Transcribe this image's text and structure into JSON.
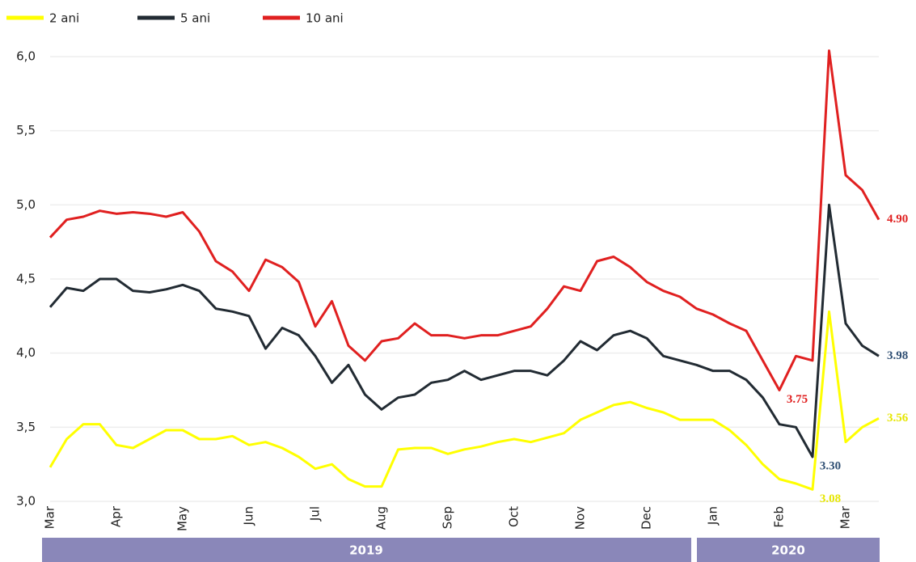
{
  "chart_data": {
    "type": "line",
    "categories": [
      "Mar",
      null,
      null,
      null,
      "Apr",
      null,
      null,
      null,
      "May",
      null,
      null,
      null,
      "Jun",
      null,
      null,
      null,
      "Jul",
      null,
      null,
      null,
      "Aug",
      null,
      null,
      null,
      "Sep",
      null,
      null,
      null,
      "Oct",
      null,
      null,
      null,
      "Nov",
      null,
      null,
      null,
      "Dec",
      null,
      null,
      null,
      "Jan",
      null,
      null,
      null,
      "Feb",
      null,
      null,
      null,
      "Mar",
      null,
      null
    ],
    "x_groups": [
      "2019",
      "2020"
    ],
    "series": [
      {
        "name": "2 ani",
        "color": "#ffff00",
        "label_color": "#e6e600",
        "values": [
          3.23,
          3.42,
          3.52,
          3.52,
          3.38,
          3.36,
          3.42,
          3.48,
          3.48,
          3.42,
          3.42,
          3.44,
          3.38,
          3.4,
          3.36,
          3.3,
          3.22,
          3.25,
          3.15,
          3.1,
          3.1,
          3.35,
          3.36,
          3.36,
          3.32,
          3.35,
          3.37,
          3.4,
          3.42,
          3.4,
          3.43,
          3.46,
          3.55,
          3.6,
          3.65,
          3.67,
          3.63,
          3.6,
          3.55,
          3.55,
          3.55,
          3.48,
          3.38,
          3.25,
          3.15,
          3.12,
          3.08,
          4.28,
          3.4,
          3.5,
          3.56
        ],
        "value_labels": [
          null,
          null,
          null,
          null,
          null,
          null,
          null,
          null,
          null,
          null,
          null,
          null,
          null,
          null,
          null,
          null,
          null,
          null,
          null,
          null,
          null,
          null,
          null,
          null,
          null,
          null,
          null,
          null,
          null,
          null,
          null,
          null,
          null,
          null,
          null,
          null,
          null,
          null,
          null,
          null,
          null,
          null,
          null,
          null,
          null,
          null,
          "3.08",
          null,
          null,
          null,
          "3.56"
        ]
      },
      {
        "name": "5 ani",
        "color": "#222b33",
        "label_color": "#2f4f73",
        "values": [
          4.31,
          4.44,
          4.42,
          4.5,
          4.5,
          4.42,
          4.41,
          4.43,
          4.46,
          4.42,
          4.3,
          4.28,
          4.25,
          4.03,
          4.17,
          4.12,
          3.98,
          3.8,
          3.92,
          3.72,
          3.62,
          3.7,
          3.72,
          3.8,
          3.82,
          3.88,
          3.82,
          3.85,
          3.88,
          3.88,
          3.85,
          3.95,
          4.08,
          4.02,
          4.12,
          4.15,
          4.1,
          3.98,
          3.95,
          3.92,
          3.88,
          3.88,
          3.82,
          3.7,
          3.52,
          3.5,
          3.3,
          5.0,
          4.2,
          4.05,
          3.98
        ],
        "value_labels": [
          null,
          null,
          null,
          null,
          null,
          null,
          null,
          null,
          null,
          null,
          null,
          null,
          null,
          null,
          null,
          null,
          null,
          null,
          null,
          null,
          null,
          null,
          null,
          null,
          null,
          null,
          null,
          null,
          null,
          null,
          null,
          null,
          null,
          null,
          null,
          null,
          null,
          null,
          null,
          null,
          null,
          null,
          null,
          null,
          null,
          null,
          "3.30",
          null,
          null,
          null,
          "3.98"
        ]
      },
      {
        "name": "10 ani",
        "color": "#e02020",
        "label_color": "#e02020",
        "values": [
          4.78,
          4.9,
          4.92,
          4.96,
          4.94,
          4.95,
          4.94,
          4.92,
          4.95,
          4.82,
          4.62,
          4.55,
          4.42,
          4.63,
          4.58,
          4.48,
          4.18,
          4.35,
          4.05,
          3.95,
          4.08,
          4.1,
          4.2,
          4.12,
          4.12,
          4.1,
          4.12,
          4.12,
          4.15,
          4.18,
          4.3,
          4.45,
          4.42,
          4.62,
          4.65,
          4.58,
          4.48,
          4.42,
          4.38,
          4.3,
          4.26,
          4.2,
          4.15,
          3.95,
          3.75,
          3.98,
          3.95,
          6.04,
          5.2,
          5.1,
          4.9
        ],
        "value_labels": [
          null,
          null,
          null,
          null,
          null,
          null,
          null,
          null,
          null,
          null,
          null,
          null,
          null,
          null,
          null,
          null,
          null,
          null,
          null,
          null,
          null,
          null,
          null,
          null,
          null,
          null,
          null,
          null,
          null,
          null,
          null,
          null,
          null,
          null,
          null,
          null,
          null,
          null,
          null,
          null,
          null,
          null,
          null,
          null,
          "3.75",
          null,
          null,
          null,
          null,
          null,
          "4.90"
        ]
      }
    ],
    "ylim": [
      3,
      6
    ],
    "yticks": [
      {
        "value": 3,
        "label": "3,0"
      },
      {
        "value": 3.5,
        "label": "3,5"
      },
      {
        "value": 4,
        "label": "4,0"
      },
      {
        "value": 4.5,
        "label": "4,5"
      },
      {
        "value": 5,
        "label": "5,0"
      },
      {
        "value": 5.5,
        "label": "5,5"
      },
      {
        "value": 6,
        "label": "6,0"
      }
    ],
    "grid": true
  }
}
